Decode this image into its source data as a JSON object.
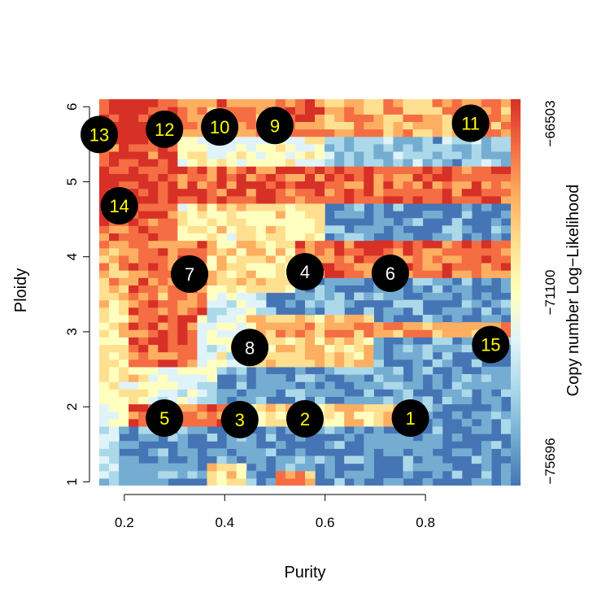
{
  "chart_data": {
    "type": "heatmap",
    "title": "",
    "xlabel": "Purity",
    "ylabel": "Ploidy",
    "colorbar_label": "Copy number Log−Likelihood",
    "x_range": [
      0.15,
      0.97
    ],
    "y_range": [
      0.95,
      6.1
    ],
    "x_ticks": [
      0.2,
      0.4,
      0.6,
      0.8
    ],
    "x_tick_labels": [
      "0.2",
      "0.4",
      "0.6",
      "0.8"
    ],
    "y_ticks": [
      1,
      2,
      3,
      4,
      5,
      6
    ],
    "y_tick_labels": [
      "1",
      "2",
      "3",
      "4",
      "5",
      "6"
    ],
    "colorbar_ticks": [
      -75696,
      -71100,
      -66503
    ],
    "colorbar_tick_labels": [
      "−75696",
      "−71100",
      "−66503"
    ],
    "colorbar_range": [
      -75696,
      -66503
    ],
    "colors": [
      "#4575b4",
      "#74add1",
      "#abd9e9",
      "#e0f3f8",
      "#ffffbf",
      "#fee090",
      "#fdae61",
      "#f46d43",
      "#d73027"
    ],
    "grid": false,
    "legend": "colorbar-right",
    "solutions": [
      {
        "label": "1",
        "purity": 0.77,
        "ploidy": 1.85,
        "label_color": "#ffff00"
      },
      {
        "label": "2",
        "purity": 0.56,
        "ploidy": 1.84,
        "label_color": "#ffff00"
      },
      {
        "label": "3",
        "purity": 0.43,
        "ploidy": 1.83,
        "label_color": "#ffff00"
      },
      {
        "label": "4",
        "purity": 0.56,
        "ploidy": 3.8,
        "label_color": "#ffffff"
      },
      {
        "label": "5",
        "purity": 0.28,
        "ploidy": 1.85,
        "label_color": "#ffff00"
      },
      {
        "label": "6",
        "purity": 0.73,
        "ploidy": 3.78,
        "label_color": "#ffffff"
      },
      {
        "label": "7",
        "purity": 0.33,
        "ploidy": 3.77,
        "label_color": "#ffffff"
      },
      {
        "label": "8",
        "purity": 0.45,
        "ploidy": 2.79,
        "label_color": "#ffffff"
      },
      {
        "label": "9",
        "purity": 0.5,
        "ploidy": 5.75,
        "label_color": "#ffff00"
      },
      {
        "label": "10",
        "purity": 0.39,
        "ploidy": 5.73,
        "label_color": "#ffff00"
      },
      {
        "label": "11",
        "purity": 0.89,
        "ploidy": 5.78,
        "label_color": "#ffff00"
      },
      {
        "label": "12",
        "purity": 0.28,
        "ploidy": 5.7,
        "label_color": "#ffff00"
      },
      {
        "label": "13",
        "purity": 0.15,
        "ploidy": 5.63,
        "label_color": "#ffff00"
      },
      {
        "label": "14",
        "purity": 0.19,
        "ploidy": 4.68,
        "label_color": "#ffff00"
      },
      {
        "label": "15",
        "purity": 0.93,
        "ploidy": 2.83,
        "label_color": "#ffff00"
      }
    ]
  }
}
